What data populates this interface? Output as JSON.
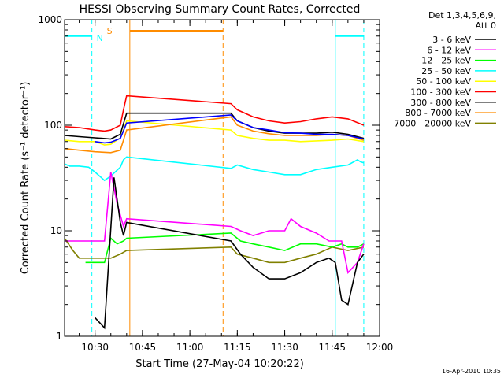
{
  "chart_data": {
    "type": "line",
    "title": "HESSI Observing Summary Count Rates, Corrected",
    "xlabel": "Start Time (27-May-04 10:20:22)",
    "ylabel": "Corrected Count Rate (s⁻¹ detector⁻¹)",
    "timestamp": "16-Apr-2010 10:35",
    "yscale": "log",
    "ylim": [
      1,
      1000
    ],
    "xlim": [
      "10:20:22",
      "12:00:00"
    ],
    "x_ticks": [
      "10:30",
      "10:45",
      "11:00",
      "11:15",
      "11:30",
      "11:45",
      "12:00"
    ],
    "y_ticks": [
      "1",
      "10",
      "100",
      "1000"
    ],
    "legend": {
      "header1": "Det 1,3,4,5,6,9,",
      "header2": "Att 0",
      "position": "right"
    },
    "flags": [
      {
        "label": "N",
        "color": "#00ffff"
      },
      {
        "label": "S",
        "color": "#ff8c00"
      }
    ],
    "series": [
      {
        "name": "3 - 6 keV",
        "color": "#000000",
        "x": [
          "10:30",
          "10:33",
          "10:36",
          "10:38",
          "10:39",
          "10:40",
          "11:13",
          "11:16",
          "11:20",
          "11:25",
          "11:30",
          "11:35",
          "11:40",
          "11:44",
          "11:46",
          "11:48",
          "11:50",
          "11:53",
          "11:55"
        ],
        "y": [
          1.5,
          1.2,
          32,
          12,
          9,
          12,
          8,
          6,
          4.5,
          3.5,
          3.5,
          4,
          5,
          5.5,
          5,
          2.2,
          2,
          5,
          6
        ]
      },
      {
        "name": "6 - 12 keV",
        "color": "#ff00ff",
        "x": [
          "10:20:22",
          "10:25",
          "10:30",
          "10:33",
          "10:35",
          "10:37",
          "10:39",
          "10:40",
          "11:13",
          "11:16",
          "11:20",
          "11:25",
          "11:30",
          "11:32",
          "11:35",
          "11:40",
          "11:44",
          "11:48",
          "11:50",
          "11:53",
          "11:55"
        ],
        "y": [
          8,
          8,
          8,
          8,
          36,
          18,
          11,
          13,
          11,
          10,
          9,
          10,
          10,
          13,
          11,
          9.5,
          8,
          8,
          4,
          5,
          7.5
        ]
      },
      {
        "name": "12 - 25 keV",
        "color": "#00ff00",
        "x": [
          "10:27",
          "10:30",
          "10:33",
          "10:35",
          "10:37",
          "10:39",
          "10:40",
          "11:13",
          "11:16",
          "11:20",
          "11:25",
          "11:30",
          "11:35",
          "11:40",
          "11:45",
          "11:48",
          "11:50",
          "11:53",
          "11:55"
        ],
        "y": [
          5,
          5,
          5,
          8.5,
          7.5,
          8,
          8.5,
          9.5,
          8,
          7.5,
          7,
          6.5,
          7.5,
          7.5,
          7,
          7.5,
          7,
          7,
          7.5
        ]
      },
      {
        "name": "25 - 50 keV",
        "color": "#00ffff",
        "x": [
          "10:20:22",
          "10:22",
          "10:25",
          "10:28",
          "10:30",
          "10:33",
          "10:35",
          "10:38",
          "10:39",
          "10:40",
          "11:13",
          "11:15",
          "11:20",
          "11:25",
          "11:30",
          "11:35",
          "11:40",
          "11:45",
          "11:50",
          "11:53",
          "11:54",
          "11:55"
        ],
        "y": [
          43,
          41,
          41,
          40,
          36,
          30,
          33,
          40,
          47,
          50,
          39,
          42,
          38,
          36,
          34,
          34,
          38,
          40,
          42,
          47,
          45,
          44
        ]
      },
      {
        "name": "50 - 100 keV",
        "color": "#ffff00",
        "x": [
          "10:20:22",
          "10:25",
          "10:30",
          "10:33",
          "10:35",
          "10:38",
          "10:39",
          "10:40",
          "11:13",
          "11:15",
          "11:20",
          "11:25",
          "11:30",
          "11:35",
          "11:40",
          "11:45",
          "11:50",
          "11:55"
        ],
        "y": [
          72,
          70,
          70,
          65,
          66,
          76,
          90,
          110,
          90,
          80,
          75,
          72,
          72,
          70,
          71,
          72,
          74,
          70
        ]
      },
      {
        "name": "100 - 300 keV",
        "color": "#ff0000",
        "x": [
          "10:20:22",
          "10:25",
          "10:30",
          "10:33",
          "10:35",
          "10:38",
          "10:39",
          "10:40",
          "11:13",
          "11:15",
          "11:20",
          "11:25",
          "11:30",
          "11:35",
          "11:40",
          "11:45",
          "11:50",
          "11:55"
        ],
        "y": [
          97,
          95,
          90,
          88,
          90,
          100,
          140,
          190,
          160,
          140,
          120,
          110,
          105,
          108,
          115,
          120,
          115,
          100
        ]
      },
      {
        "name": "300 - 800 keV",
        "color": "#000000",
        "x": [
          "10:20:22",
          "10:25",
          "10:30",
          "10:35",
          "10:38",
          "10:40",
          "11:13",
          "11:15",
          "11:20",
          "11:25",
          "11:30",
          "11:35",
          "11:40",
          "11:45",
          "11:50",
          "11:55"
        ],
        "y": [
          80,
          78,
          76,
          74,
          82,
          130,
          130,
          110,
          95,
          88,
          84,
          84,
          84,
          86,
          82,
          75
        ]
      },
      {
        "name": "800 - 7000 keV",
        "color": "#ff8c00",
        "x": [
          "10:20:22",
          "10:25",
          "10:30",
          "10:35",
          "10:38",
          "10:40",
          "11:13",
          "11:15",
          "11:20",
          "11:25",
          "11:30",
          "11:35",
          "11:40",
          "11:45",
          "11:50",
          "11:55"
        ],
        "y": [
          60,
          58,
          56,
          55,
          58,
          90,
          120,
          100,
          88,
          83,
          80,
          80,
          80,
          82,
          80,
          72
        ]
      },
      {
        "name": "7000 - 20000 keV",
        "color": "#808000",
        "x": [
          "10:20:22",
          "10:23",
          "10:25",
          "10:28",
          "10:30",
          "10:33",
          "10:35",
          "10:38",
          "10:40",
          "11:13",
          "11:15",
          "11:20",
          "11:25",
          "11:30",
          "11:35",
          "11:40",
          "11:45",
          "11:50",
          "11:55"
        ],
        "y": [
          8.5,
          6.5,
          5.5,
          5.5,
          5.5,
          5.5,
          5.5,
          6,
          6.5,
          7,
          6,
          5.5,
          5,
          5,
          5.5,
          6,
          7,
          6.5,
          7
        ]
      }
    ],
    "blue_series": {
      "color": "#0000ff",
      "x": [
        "10:30",
        "10:33",
        "10:35",
        "10:38",
        "10:40",
        "11:13",
        "11:15",
        "11:20",
        "11:25",
        "11:30",
        "11:35",
        "11:40",
        "11:45",
        "11:50",
        "11:55"
      ],
      "y": [
        70,
        68,
        69,
        75,
        105,
        125,
        110,
        95,
        90,
        85,
        84,
        82,
        82,
        80,
        74
      ]
    },
    "markers": [
      {
        "type": "cyan-level",
        "color": "#00ffff",
        "x1": "10:20:22",
        "x2": "10:29:00",
        "y": 700
      },
      {
        "type": "cyan-level",
        "color": "#00ffff",
        "x1": "11:46:00",
        "x2": "11:55:00",
        "y": 700
      },
      {
        "type": "orange-bar",
        "color": "#ff8c00",
        "x1": "10:41:00",
        "x2": "11:10:30",
        "y": 780
      },
      {
        "type": "vline-dash",
        "color": "#00ffff",
        "x": "10:29:00"
      },
      {
        "type": "vline-solid",
        "color": "#00ffff",
        "x": "11:46:00"
      },
      {
        "type": "vline-dash",
        "color": "#00ffff",
        "x": "11:55:00"
      },
      {
        "type": "vline-solid",
        "color": "#ff8c00",
        "x": "10:41:00"
      },
      {
        "type": "vline-dash",
        "color": "#ff8c00",
        "x": "11:10:30"
      }
    ]
  }
}
